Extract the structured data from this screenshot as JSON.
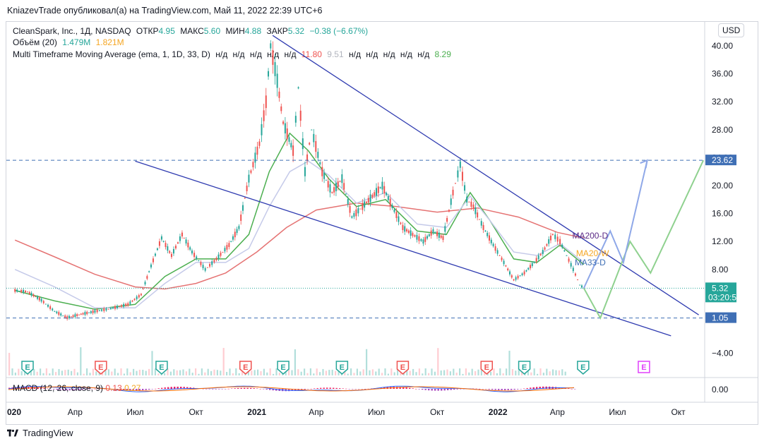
{
  "header": {
    "caption": "KniazevTrade опубликовал(а) на TradingView.com, Май 11, 2022 22:39 UTC+6"
  },
  "legend": {
    "symbol": "CleanSpark, Inc., 1Д, NASDAQ",
    "open_label": "ОТКР",
    "open_value": "4.95",
    "high_label": "МАКС",
    "high_value": "5.60",
    "low_label": "МИН",
    "low_value": "4.88",
    "close_label": "ЗАКР",
    "close_value": "5.32",
    "change": "−0.38 (−6.67%)",
    "volume_label": "Объём (20)",
    "volume_value1": "1.479M",
    "volume_value2": "1.821M",
    "mtf_label": "Multi Timeframe Moving Average (ema, 1, 1D, 33, D)",
    "na": "н/д",
    "mtf_v1": "11.80",
    "mtf_v2": "9.51",
    "mtf_v3": "8.29"
  },
  "currency_button": "USD",
  "macd_legend": {
    "label": "MACD (12, 26, close, 9)",
    "v1": "0.13",
    "v2": "0.27"
  },
  "footer": {
    "brand": "TradingView"
  },
  "colors": {
    "up": "#26a69a",
    "down": "#ef5350",
    "ma200": "#e57373",
    "ma20": "#4caf50",
    "ma33": "#c5cae9",
    "channel": "#2f3bb0",
    "proj_green": "#8fd18f",
    "proj_blue": "#8fa8e8",
    "level": "#3f6fb5",
    "dotted": "#26a69a"
  },
  "price_labels": {
    "level_high": "23.62",
    "current": "5.32",
    "countdown": "03:20:53",
    "level_low": "1.05"
  },
  "drawing_labels": {
    "ma200": "MA200-D",
    "ma20": "MA20-W",
    "ma33": "MA33-D"
  },
  "event_markers": [
    {
      "x": "2020-01-20",
      "type": "E",
      "kind": "earnings-good"
    },
    {
      "x": "2020-05-10",
      "type": "E",
      "kind": "earnings-bad"
    },
    {
      "x": "2020-08-10",
      "type": "E",
      "kind": "earnings-good"
    },
    {
      "x": "2020-12-15",
      "type": "E",
      "kind": "earnings-bad"
    },
    {
      "x": "2021-02-10",
      "type": "E",
      "kind": "earnings-good"
    },
    {
      "x": "2021-05-10",
      "type": "E",
      "kind": "earnings-good"
    },
    {
      "x": "2021-08-10",
      "type": "E",
      "kind": "earnings-bad"
    },
    {
      "x": "2021-12-15",
      "type": "E",
      "kind": "earnings-bad"
    },
    {
      "x": "2022-02-10",
      "type": "E",
      "kind": "earnings-good"
    },
    {
      "x": "2022-05-10",
      "type": "E",
      "kind": "earnings-good"
    },
    {
      "x": "2022-08-10",
      "type": "E",
      "kind": "earnings-future"
    }
  ],
  "chart_data": {
    "type": "line",
    "title": "CleanSpark, Inc., 1Д, NASDAQ",
    "currency": "USD",
    "x_ticks": [
      "020",
      "Апр",
      "Июл",
      "Окт",
      "2021",
      "Апр",
      "Июл",
      "Окт",
      "2022",
      "Апр",
      "Июл",
      "Окт"
    ],
    "x_range": [
      "2019-12-20",
      "2022-11-10"
    ],
    "y_ticks": [
      "40.00",
      "36.00",
      "32.00",
      "28.00",
      "24.00",
      "20.00",
      "16.00",
      "12.00",
      "8.00",
      "4.00",
      "−4.00"
    ],
    "y_ticks_values": [
      40,
      36,
      32,
      28,
      24,
      20,
      16,
      12,
      8,
      4,
      -4
    ],
    "ylim": [
      -6,
      43
    ],
    "macd_tick": "0.00",
    "price_series": {
      "name": "close",
      "points": [
        [
          "2020-01-01",
          5.0
        ],
        [
          "2020-01-20",
          4.8
        ],
        [
          "2020-02-10",
          3.6
        ],
        [
          "2020-03-01",
          2.0
        ],
        [
          "2020-03-20",
          1.1
        ],
        [
          "2020-04-10",
          1.6
        ],
        [
          "2020-05-01",
          2.0
        ],
        [
          "2020-05-25",
          2.4
        ],
        [
          "2020-06-20",
          3.0
        ],
        [
          "2020-07-10",
          4.4
        ],
        [
          "2020-07-25",
          8.5
        ],
        [
          "2020-08-10",
          12.5
        ],
        [
          "2020-08-25",
          10.0
        ],
        [
          "2020-09-10",
          13.0
        ],
        [
          "2020-09-25",
          10.5
        ],
        [
          "2020-10-15",
          8.0
        ],
        [
          "2020-11-01",
          9.5
        ],
        [
          "2020-11-20",
          11.5
        ],
        [
          "2020-12-05",
          14.0
        ],
        [
          "2020-12-20",
          21.0
        ],
        [
          "2021-01-05",
          26.0
        ],
        [
          "2021-01-15",
          32.0
        ],
        [
          "2021-01-22",
          40.0
        ],
        [
          "2021-02-01",
          35.0
        ],
        [
          "2021-02-10",
          29.0
        ],
        [
          "2021-02-25",
          25.0
        ],
        [
          "2021-03-05",
          34.0
        ],
        [
          "2021-03-15",
          22.0
        ],
        [
          "2021-03-25",
          28.0
        ],
        [
          "2021-04-10",
          22.0
        ],
        [
          "2021-04-25",
          19.0
        ],
        [
          "2021-05-10",
          21.0
        ],
        [
          "2021-05-25",
          15.5
        ],
        [
          "2021-06-10",
          17.0
        ],
        [
          "2021-06-25",
          18.5
        ],
        [
          "2021-07-10",
          20.0
        ],
        [
          "2021-07-25",
          17.0
        ],
        [
          "2021-08-10",
          14.0
        ],
        [
          "2021-08-25",
          13.0
        ],
        [
          "2021-09-10",
          12.0
        ],
        [
          "2021-09-25",
          13.5
        ],
        [
          "2021-10-10",
          12.5
        ],
        [
          "2021-10-25",
          19.0
        ],
        [
          "2021-11-05",
          23.0
        ],
        [
          "2021-11-15",
          18.0
        ],
        [
          "2021-11-25",
          17.0
        ],
        [
          "2021-12-10",
          14.0
        ],
        [
          "2021-12-25",
          11.5
        ],
        [
          "2022-01-10",
          9.0
        ],
        [
          "2022-01-25",
          6.5
        ],
        [
          "2022-02-10",
          7.5
        ],
        [
          "2022-02-25",
          9.0
        ],
        [
          "2022-03-10",
          10.5
        ],
        [
          "2022-03-25",
          13.0
        ],
        [
          "2022-04-05",
          12.0
        ],
        [
          "2022-04-15",
          10.0
        ],
        [
          "2022-04-25",
          8.0
        ],
        [
          "2022-05-05",
          5.8
        ],
        [
          "2022-05-11",
          5.32
        ]
      ]
    },
    "ma_series": [
      {
        "name": "MA200-D",
        "color": "#e57373",
        "points": [
          [
            "2020-01-01",
            12.2
          ],
          [
            "2020-03-01",
            9.8
          ],
          [
            "2020-05-01",
            7.3
          ],
          [
            "2020-07-01",
            5.5
          ],
          [
            "2020-08-15",
            5.2
          ],
          [
            "2020-10-01",
            6.0
          ],
          [
            "2020-11-15",
            7.5
          ],
          [
            "2021-01-01",
            10.5
          ],
          [
            "2021-02-15",
            14.0
          ],
          [
            "2021-04-01",
            16.5
          ],
          [
            "2021-06-01",
            17.5
          ],
          [
            "2021-08-01",
            17.0
          ],
          [
            "2021-10-01",
            16.2
          ],
          [
            "2021-12-01",
            16.8
          ],
          [
            "2022-02-01",
            15.5
          ],
          [
            "2022-04-01",
            13.3
          ],
          [
            "2022-05-11",
            12.5
          ]
        ]
      },
      {
        "name": "MA20-W",
        "color": "#4caf50",
        "points": [
          [
            "2020-01-01",
            5.0
          ],
          [
            "2020-03-01",
            3.5
          ],
          [
            "2020-05-01",
            2.3
          ],
          [
            "2020-07-01",
            3.0
          ],
          [
            "2020-08-15",
            7.0
          ],
          [
            "2020-10-01",
            9.5
          ],
          [
            "2020-11-15",
            9.5
          ],
          [
            "2020-12-20",
            13.0
          ],
          [
            "2021-01-20",
            22.0
          ],
          [
            "2021-02-20",
            27.5
          ],
          [
            "2021-03-20",
            25.0
          ],
          [
            "2021-04-20",
            21.0
          ],
          [
            "2021-06-01",
            17.0
          ],
          [
            "2021-07-15",
            18.0
          ],
          [
            "2021-09-01",
            13.5
          ],
          [
            "2021-10-15",
            13.0
          ],
          [
            "2021-11-20",
            19.0
          ],
          [
            "2021-12-20",
            15.0
          ],
          [
            "2022-01-25",
            9.5
          ],
          [
            "2022-03-01",
            9.0
          ],
          [
            "2022-04-05",
            11.5
          ],
          [
            "2022-05-11",
            8.7
          ]
        ]
      },
      {
        "name": "MA33-D",
        "color": "#c5cae9",
        "points": [
          [
            "2020-01-01",
            8.0
          ],
          [
            "2020-03-01",
            5.5
          ],
          [
            "2020-05-01",
            2.5
          ],
          [
            "2020-07-01",
            2.5
          ],
          [
            "2020-08-15",
            6.0
          ],
          [
            "2020-10-01",
            9.0
          ],
          [
            "2020-11-15",
            9.0
          ],
          [
            "2020-12-20",
            11.0
          ],
          [
            "2021-01-20",
            17.0
          ],
          [
            "2021-02-20",
            22.0
          ],
          [
            "2021-03-20",
            23.5
          ],
          [
            "2021-04-20",
            21.5
          ],
          [
            "2021-06-01",
            17.5
          ],
          [
            "2021-07-15",
            19.0
          ],
          [
            "2021-09-01",
            14.5
          ],
          [
            "2021-10-15",
            14.0
          ],
          [
            "2021-11-20",
            18.5
          ],
          [
            "2021-12-20",
            15.0
          ],
          [
            "2022-01-25",
            10.5
          ],
          [
            "2022-03-01",
            10.0
          ],
          [
            "2022-04-05",
            11.7
          ],
          [
            "2022-05-11",
            9.0
          ]
        ]
      }
    ],
    "drawings": {
      "channel_upper": [
        [
          "2021-01-25",
          41.5
        ],
        [
          "2022-11-01",
          1.5
        ]
      ],
      "channel_lower": [
        [
          "2020-07-01",
          23.5
        ],
        [
          "2022-09-20",
          -1.5
        ]
      ],
      "level_high": 23.62,
      "level_low": 1.05,
      "current_line": 5.32,
      "projection_green": [
        [
          "2022-05-11",
          5.32
        ],
        [
          "2022-06-05",
          1.05
        ],
        [
          "2022-07-20",
          12.0
        ],
        [
          "2022-08-20",
          7.5
        ],
        [
          "2022-11-08",
          23.62
        ]
      ],
      "projection_blue": [
        [
          "2022-05-11",
          5.32
        ],
        [
          "2022-06-20",
          13.5
        ],
        [
          "2022-07-10",
          9.0
        ],
        [
          "2022-08-15",
          23.62
        ]
      ]
    },
    "volume_label": "Объём (20)",
    "macd_label": "MACD (12, 26, close, 9)",
    "legend_placement": "top-left"
  }
}
